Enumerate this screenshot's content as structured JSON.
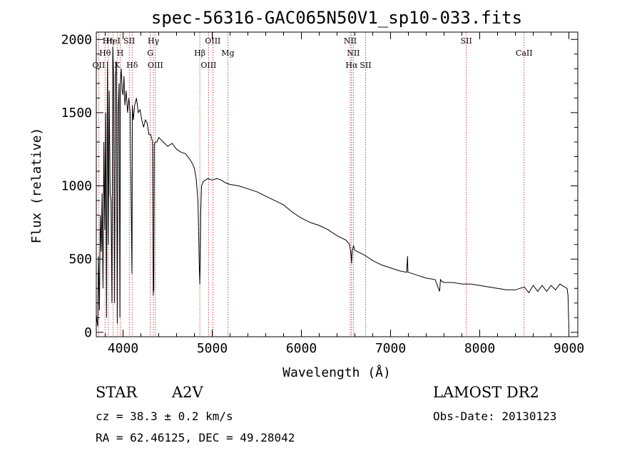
{
  "chart_data": {
    "type": "line",
    "title": "spec-56316-GAC065N50V1_sp10-033.fits",
    "xlabel": "Wavelength (Å)",
    "ylabel": "Flux (relative)",
    "xlim": [
      3700,
      9100
    ],
    "ylim": [
      -30,
      2050
    ],
    "xticks": [
      4000,
      5000,
      6000,
      7000,
      8000,
      9000
    ],
    "yticks": [
      0,
      500,
      1000,
      1500,
      2000
    ],
    "grid": false,
    "line_color": "#000000",
    "marker_color": "#b22222",
    "series": [
      {
        "x": [
          3700,
          3715,
          3725,
          3735,
          3745,
          3755,
          3765,
          3775,
          3785,
          3795,
          3805,
          3815,
          3825,
          3835,
          3845,
          3855,
          3865,
          3875,
          3885,
          3895,
          3905,
          3915,
          3925,
          3935,
          3945,
          3955,
          3965,
          3970,
          3980,
          3990,
          4000,
          4010,
          4020,
          4035,
          4050,
          4065,
          4080,
          4095,
          4100,
          4105,
          4115,
          4130,
          4150,
          4170,
          4190,
          4210,
          4230,
          4250,
          4270,
          4290,
          4310,
          4330,
          4338,
          4341,
          4345,
          4350,
          4360,
          4380,
          4400,
          4450,
          4500,
          4550,
          4600,
          4650,
          4700,
          4750,
          4780,
          4800,
          4820,
          4840,
          4850,
          4855,
          4861,
          4866,
          4870,
          4880,
          4900,
          4950,
          5000,
          5050,
          5100,
          5150,
          5200,
          5300,
          5400,
          5500,
          5600,
          5700,
          5800,
          5900,
          6000,
          6100,
          6200,
          6300,
          6400,
          6500,
          6540,
          6555,
          6563,
          6570,
          6585,
          6600,
          6700,
          6800,
          6900,
          7000,
          7100,
          7180,
          7190,
          7195,
          7200,
          7300,
          7400,
          7500,
          7550,
          7560,
          7570,
          7600,
          7700,
          7800,
          7900,
          8000,
          8100,
          8200,
          8300,
          8400,
          8450,
          8500,
          8550,
          8600,
          8650,
          8700,
          8750,
          8800,
          8850,
          8900,
          8950,
          8980,
          8990,
          9000
        ],
        "y": [
          120,
          40,
          520,
          150,
          800,
          550,
          950,
          300,
          1300,
          700,
          1500,
          100,
          1850,
          600,
          1650,
          950,
          900,
          200,
          1950,
          1750,
          200,
          1750,
          1850,
          60,
          1500,
          1700,
          100,
          1700,
          1800,
          1650,
          1620,
          1750,
          1550,
          1650,
          1500,
          1600,
          1500,
          650,
          400,
          1550,
          1450,
          1550,
          1600,
          1500,
          1520,
          1450,
          1400,
          1450,
          1430,
          1350,
          1350,
          1300,
          250,
          450,
          280,
          1280,
          1300,
          1300,
          1330,
          1300,
          1270,
          1290,
          1250,
          1230,
          1220,
          1180,
          1150,
          1120,
          1050,
          900,
          600,
          450,
          330,
          500,
          800,
          1000,
          1030,
          1050,
          1040,
          1050,
          1040,
          1020,
          1010,
          1000,
          980,
          960,
          930,
          900,
          870,
          820,
          780,
          750,
          730,
          700,
          660,
          630,
          600,
          540,
          470,
          560,
          590,
          560,
          530,
          490,
          460,
          440,
          420,
          410,
          520,
          410,
          410,
          390,
          370,
          360,
          280,
          360,
          350,
          340,
          340,
          330,
          330,
          320,
          310,
          300,
          290,
          290,
          300,
          310,
          270,
          320,
          280,
          320,
          280,
          320,
          290,
          330,
          310,
          300,
          250,
          20
        ]
      }
    ],
    "line_markers": [
      {
        "name": "OII",
        "x": 3727,
        "row": 3
      },
      {
        "name": "Hθ",
        "x": 3798,
        "row": 2
      },
      {
        "name": "Hη",
        "x": 3835,
        "row": 1
      },
      {
        "name": "HeI",
        "x": 3889,
        "row": 1
      },
      {
        "name": "K",
        "x": 3934,
        "row": 3
      },
      {
        "name": "H",
        "x": 3968,
        "row": 2
      },
      {
        "name": "SII",
        "x": 4070,
        "row": 1
      },
      {
        "name": "Hδ",
        "x": 4102,
        "row": 3
      },
      {
        "name": "G",
        "x": 4305,
        "row": 2
      },
      {
        "name": "Hγ",
        "x": 4341,
        "row": 1
      },
      {
        "name": "OIII",
        "x": 4363,
        "row": 3
      },
      {
        "name": "Hβ",
        "x": 4861,
        "row": 2
      },
      {
        "name": "OIII",
        "x": 4959,
        "row": 3
      },
      {
        "name": "OIII",
        "x": 5007,
        "row": 1
      },
      {
        "name": "Mg",
        "x": 5175,
        "row": 2
      },
      {
        "name": "NII",
        "x": 6548,
        "row": 1
      },
      {
        "name": "NII",
        "x": 6583,
        "row": 2
      },
      {
        "name": "Hα",
        "x": 6563,
        "row": 3
      },
      {
        "name": "SII",
        "x": 6720,
        "row": 3
      },
      {
        "name": "SII",
        "x": 7850,
        "row": 1
      },
      {
        "name": "CaII",
        "x": 8498,
        "row": 2
      }
    ]
  },
  "info": {
    "obj_class": "STAR",
    "subclass": "A2V",
    "survey": "LAMOST DR2",
    "cz": "cz = 38.3 ± 0.2 km/s",
    "obs_date": "Obs-Date: 20130123",
    "coords": "RA =  62.46125, DEC =  49.28042"
  }
}
